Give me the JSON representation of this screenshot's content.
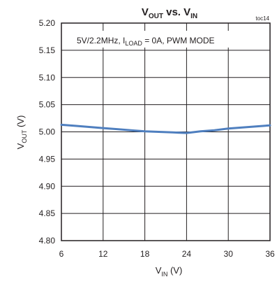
{
  "chart_data": {
    "type": "line",
    "title": {
      "main": "V",
      "main_sub": "OUT",
      "mid": " vs. V",
      "mid_sub": "IN"
    },
    "tag": "toc14",
    "annotation": {
      "pre": "5V/2.2MHz, I",
      "sub": "LOAD",
      "post": " = 0A, PWM MODE"
    },
    "xlabel": {
      "main": "V",
      "sub": "IN",
      "unit": " (V)"
    },
    "ylabel": {
      "main": "V",
      "sub": "OUT",
      "unit": " (V)"
    },
    "xlim": [
      6,
      36
    ],
    "ylim": [
      4.8,
      5.2
    ],
    "xticks": [
      "6",
      "12",
      "18",
      "24",
      "30",
      "36"
    ],
    "yticks": [
      "5.20",
      "5.15",
      "5.10",
      "5.05",
      "5.00",
      "4.95",
      "4.90",
      "4.85",
      "4.80"
    ],
    "grid": true,
    "series_color": "#4f7fbf",
    "series": [
      {
        "x": [
          6,
          8,
          10,
          12,
          14,
          16,
          18,
          20,
          22,
          24,
          26,
          28,
          30,
          32,
          34,
          36
        ],
        "y": [
          5.013,
          5.011,
          5.009,
          5.007,
          5.005,
          5.003,
          5.001,
          5.0,
          4.999,
          4.998,
          5.001,
          5.003,
          5.006,
          5.008,
          5.01,
          5.012
        ]
      }
    ]
  }
}
